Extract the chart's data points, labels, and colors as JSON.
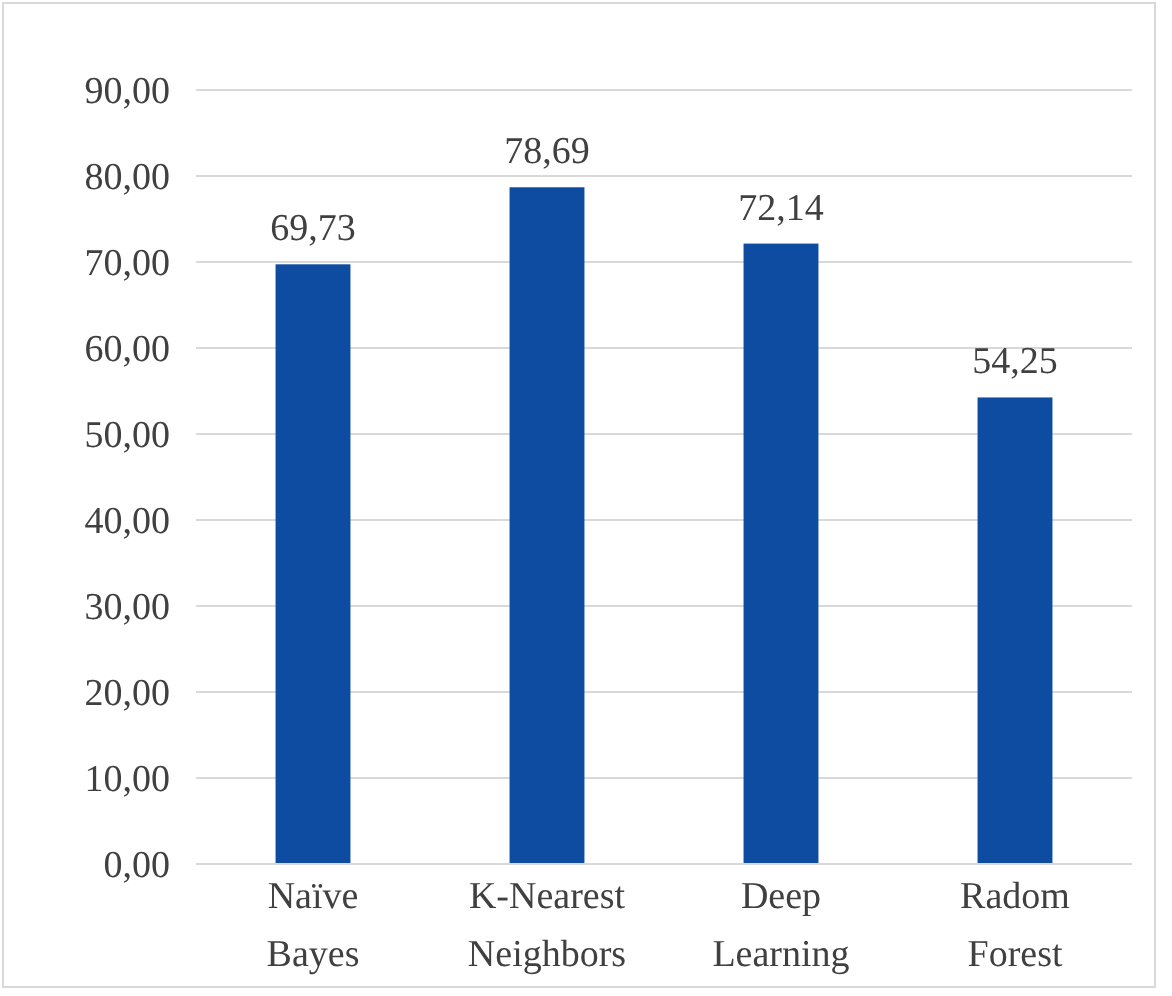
{
  "chart_data": {
    "type": "bar",
    "categories": [
      "Naïve Bayes",
      "K-Nearest Neighbors",
      "Deep Learning",
      "Radom Forest"
    ],
    "values": [
      69.73,
      78.69,
      72.14,
      54.25
    ],
    "value_labels": [
      "69,73",
      "78,69",
      "72,14",
      "54,25"
    ],
    "color": "#0d4ca1",
    "ylim": [
      0,
      90
    ],
    "yticks": [
      {
        "value": 0,
        "label": "0,00"
      },
      {
        "value": 10,
        "label": "10,00"
      },
      {
        "value": 20,
        "label": "20,00"
      },
      {
        "value": 30,
        "label": "30,00"
      },
      {
        "value": 40,
        "label": "40,00"
      },
      {
        "value": 50,
        "label": "50,00"
      },
      {
        "value": 60,
        "label": "60,00"
      },
      {
        "value": 70,
        "label": "70,00"
      },
      {
        "value": 80,
        "label": "80,00"
      },
      {
        "value": 90,
        "label": "90,00"
      }
    ],
    "grid": "y"
  }
}
